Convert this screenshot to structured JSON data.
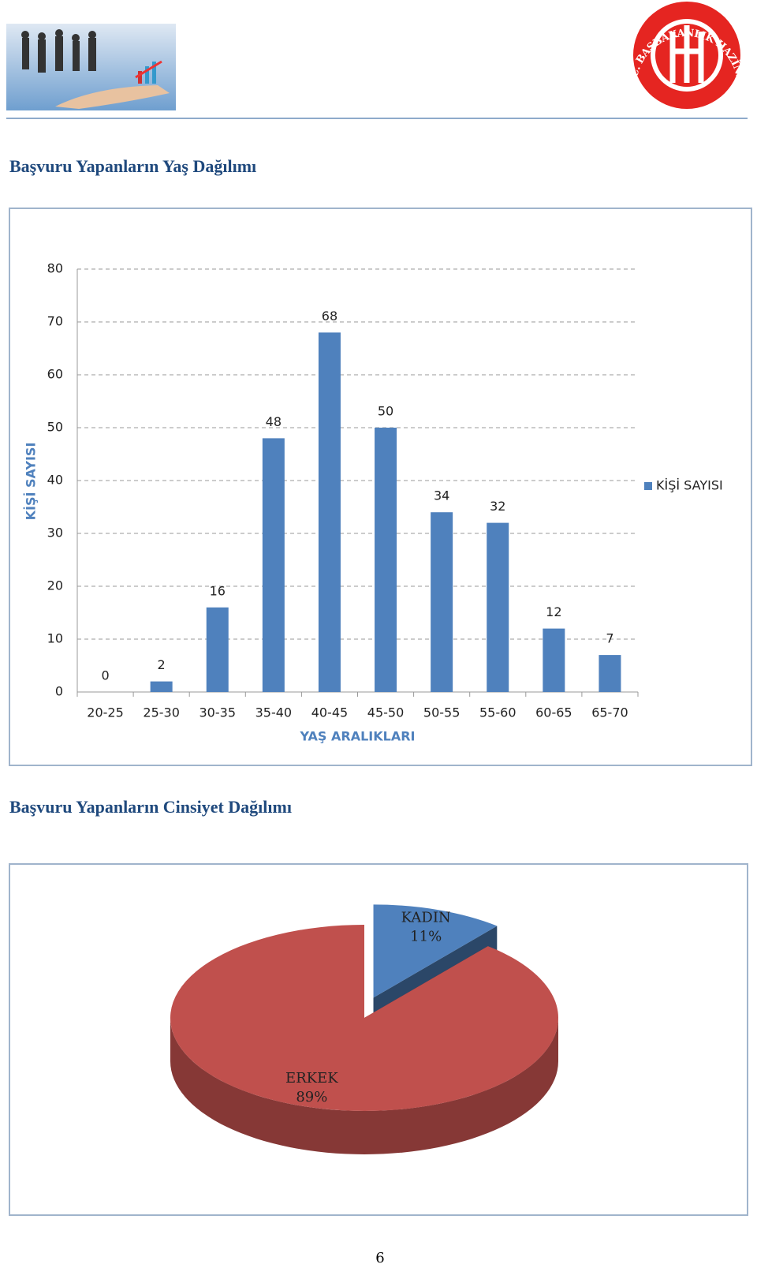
{
  "header": {
    "logo_text": "T.C. BAŞBAKANLIK HAZİNE MÜSTEŞARLIĞI"
  },
  "sections": [
    {
      "title": "Başvuru Yapanların Yaş Dağılımı"
    },
    {
      "title": "Başvuru Yapanların Cinsiyet Dağılımı"
    }
  ],
  "chart_data": [
    {
      "type": "bar",
      "categories": [
        "20-25",
        "25-30",
        "30-35",
        "35-40",
        "40-45",
        "45-50",
        "50-55",
        "55-60",
        "60-65",
        "65-70"
      ],
      "series": [
        {
          "name": "KİŞİ SAYISI",
          "color": "#4f81bd",
          "values": [
            0,
            2,
            16,
            48,
            68,
            50,
            34,
            32,
            12,
            7
          ]
        }
      ],
      "ylim": [
        0,
        80
      ],
      "yticks": [
        0,
        10,
        20,
        30,
        40,
        50,
        60,
        70,
        80
      ],
      "xlabel": "YAŞ ARALIKLARI",
      "ylabel": "KİŞİ SAYISI",
      "grid": true,
      "legend": "right"
    },
    {
      "type": "pie",
      "categories": [
        "KADIN",
        "ERKEK"
      ],
      "values": [
        11,
        89
      ],
      "value_labels": [
        "11%",
        "89%"
      ],
      "colors": [
        "#4f81bd",
        "#c0504d"
      ]
    }
  ],
  "page_number": 6
}
